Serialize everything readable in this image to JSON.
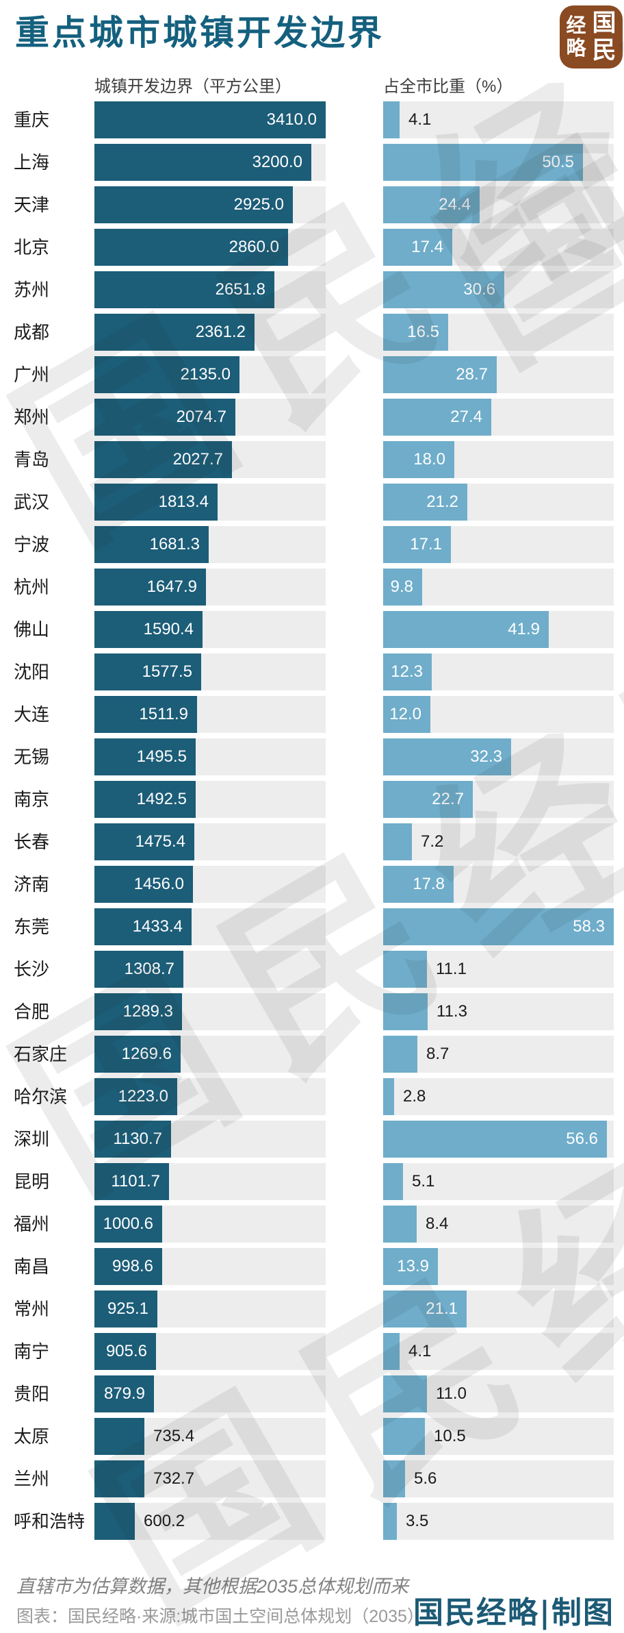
{
  "title": "重点城市城镇开发边界",
  "logo": {
    "name": "国民经略",
    "left_top": "经",
    "left_bottom": "略",
    "right_top": "国",
    "right_bottom": "民"
  },
  "watermark_text": "国民经略",
  "column_headers": {
    "left": "城镇开发边界（平方公里）",
    "right": "占全市比重（%）"
  },
  "footer": {
    "note": "直辖市为估算数据，其他根据2035总体规划而来",
    "source": "图表：国民经略·来源:城市国土空间总体规划（2035）",
    "credit": "国民经略|制图"
  },
  "colors": {
    "title": "#14607e",
    "bar_left": "#1c5d78",
    "bar_right": "#6fadca",
    "track": "#ededed",
    "logo_bg": "#8a4a22",
    "credit": "#1c5a75"
  },
  "chart_data": {
    "type": "bar",
    "orientation": "horizontal",
    "title": "重点城市城镇开发边界",
    "grid": false,
    "legend": false,
    "value_format": "one_decimal",
    "categories": [
      "重庆",
      "上海",
      "天津",
      "北京",
      "苏州",
      "成都",
      "广州",
      "郑州",
      "青岛",
      "武汉",
      "宁波",
      "杭州",
      "佛山",
      "沈阳",
      "大连",
      "无锡",
      "南京",
      "长春",
      "济南",
      "东莞",
      "长沙",
      "合肥",
      "石家庄",
      "哈尔滨",
      "深圳",
      "昆明",
      "福州",
      "南昌",
      "常州",
      "南宁",
      "贵阳",
      "太原",
      "兰州",
      "呼和浩特"
    ],
    "series": [
      {
        "name": "城镇开发边界（平方公里）",
        "unit": "平方公里",
        "axis_max": 3410.0,
        "bar_color": "#1c5d78",
        "values": [
          3410.0,
          3200.0,
          2925.0,
          2860.0,
          2651.8,
          2361.2,
          2135.0,
          2074.7,
          2027.7,
          1813.4,
          1681.3,
          1647.9,
          1590.4,
          1577.5,
          1511.9,
          1495.5,
          1492.5,
          1475.4,
          1456.0,
          1433.4,
          1308.7,
          1289.3,
          1269.6,
          1223.0,
          1130.7,
          1101.7,
          1000.6,
          998.6,
          925.1,
          905.6,
          879.9,
          735.4,
          732.7,
          600.2
        ],
        "label_inside": [
          true,
          true,
          true,
          true,
          true,
          true,
          true,
          true,
          true,
          true,
          true,
          true,
          true,
          true,
          true,
          true,
          true,
          true,
          true,
          true,
          true,
          true,
          true,
          true,
          true,
          true,
          true,
          true,
          true,
          true,
          true,
          false,
          false,
          false
        ]
      },
      {
        "name": "占全市比重（%）",
        "unit": "%",
        "axis_max": 58.3,
        "bar_color": "#6fadca",
        "values": [
          4.1,
          50.5,
          24.4,
          17.4,
          30.6,
          16.5,
          28.7,
          27.4,
          18.0,
          21.2,
          17.1,
          9.8,
          41.9,
          12.3,
          12.0,
          32.3,
          22.7,
          7.2,
          17.8,
          58.3,
          11.1,
          11.3,
          8.7,
          2.8,
          56.6,
          5.1,
          8.4,
          13.9,
          21.1,
          4.1,
          11.0,
          10.5,
          5.6,
          3.5
        ],
        "label_inside": [
          false,
          true,
          true,
          true,
          true,
          true,
          true,
          true,
          true,
          true,
          true,
          true,
          true,
          true,
          true,
          true,
          true,
          false,
          true,
          true,
          false,
          false,
          false,
          false,
          true,
          false,
          false,
          true,
          true,
          false,
          false,
          false,
          false,
          false
        ]
      }
    ]
  }
}
